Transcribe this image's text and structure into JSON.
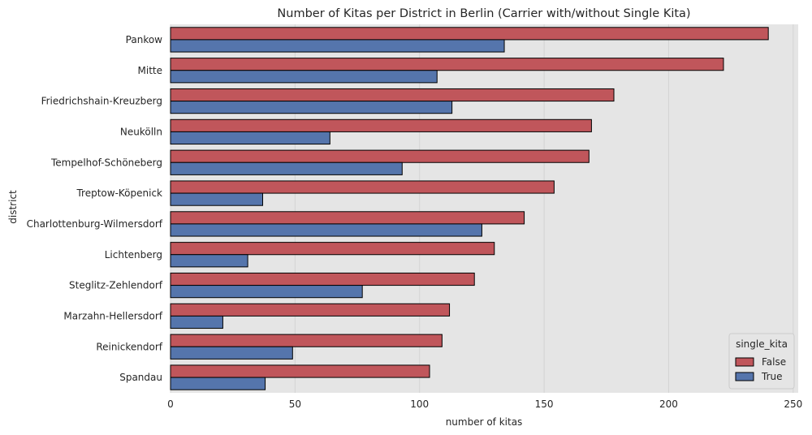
{
  "chart_data": {
    "type": "bar",
    "orientation": "horizontal",
    "title": "Number of Kitas per District in Berlin (Carrier with/without Single Kita)",
    "xlabel": "number of kitas",
    "ylabel": "district",
    "xlim": [
      0,
      252
    ],
    "xticks": [
      "0",
      "50",
      "100",
      "150",
      "200",
      "250"
    ],
    "grid": true,
    "categories": [
      "Pankow",
      "Mitte",
      "Friedrichshain-Kreuzberg",
      "Neukölln",
      "Tempelhof-Schöneberg",
      "Treptow-Köpenick",
      "Charlottenburg-Wilmersdorf",
      "Lichtenberg",
      "Steglitz-Zehlendorf",
      "Marzahn-Hellersdorf",
      "Reinickendorf",
      "Spandau"
    ],
    "series": [
      {
        "name": "False",
        "color": "#c0565b",
        "values": [
          240,
          222,
          178,
          169,
          168,
          154,
          142,
          130,
          122,
          112,
          109,
          104
        ]
      },
      {
        "name": "True",
        "color": "#5575ac",
        "values": [
          134,
          107,
          113,
          64,
          93,
          37,
          125,
          31,
          77,
          21,
          49,
          38
        ]
      }
    ],
    "legend": {
      "title": "single_kita",
      "placement": "lower-right"
    }
  }
}
